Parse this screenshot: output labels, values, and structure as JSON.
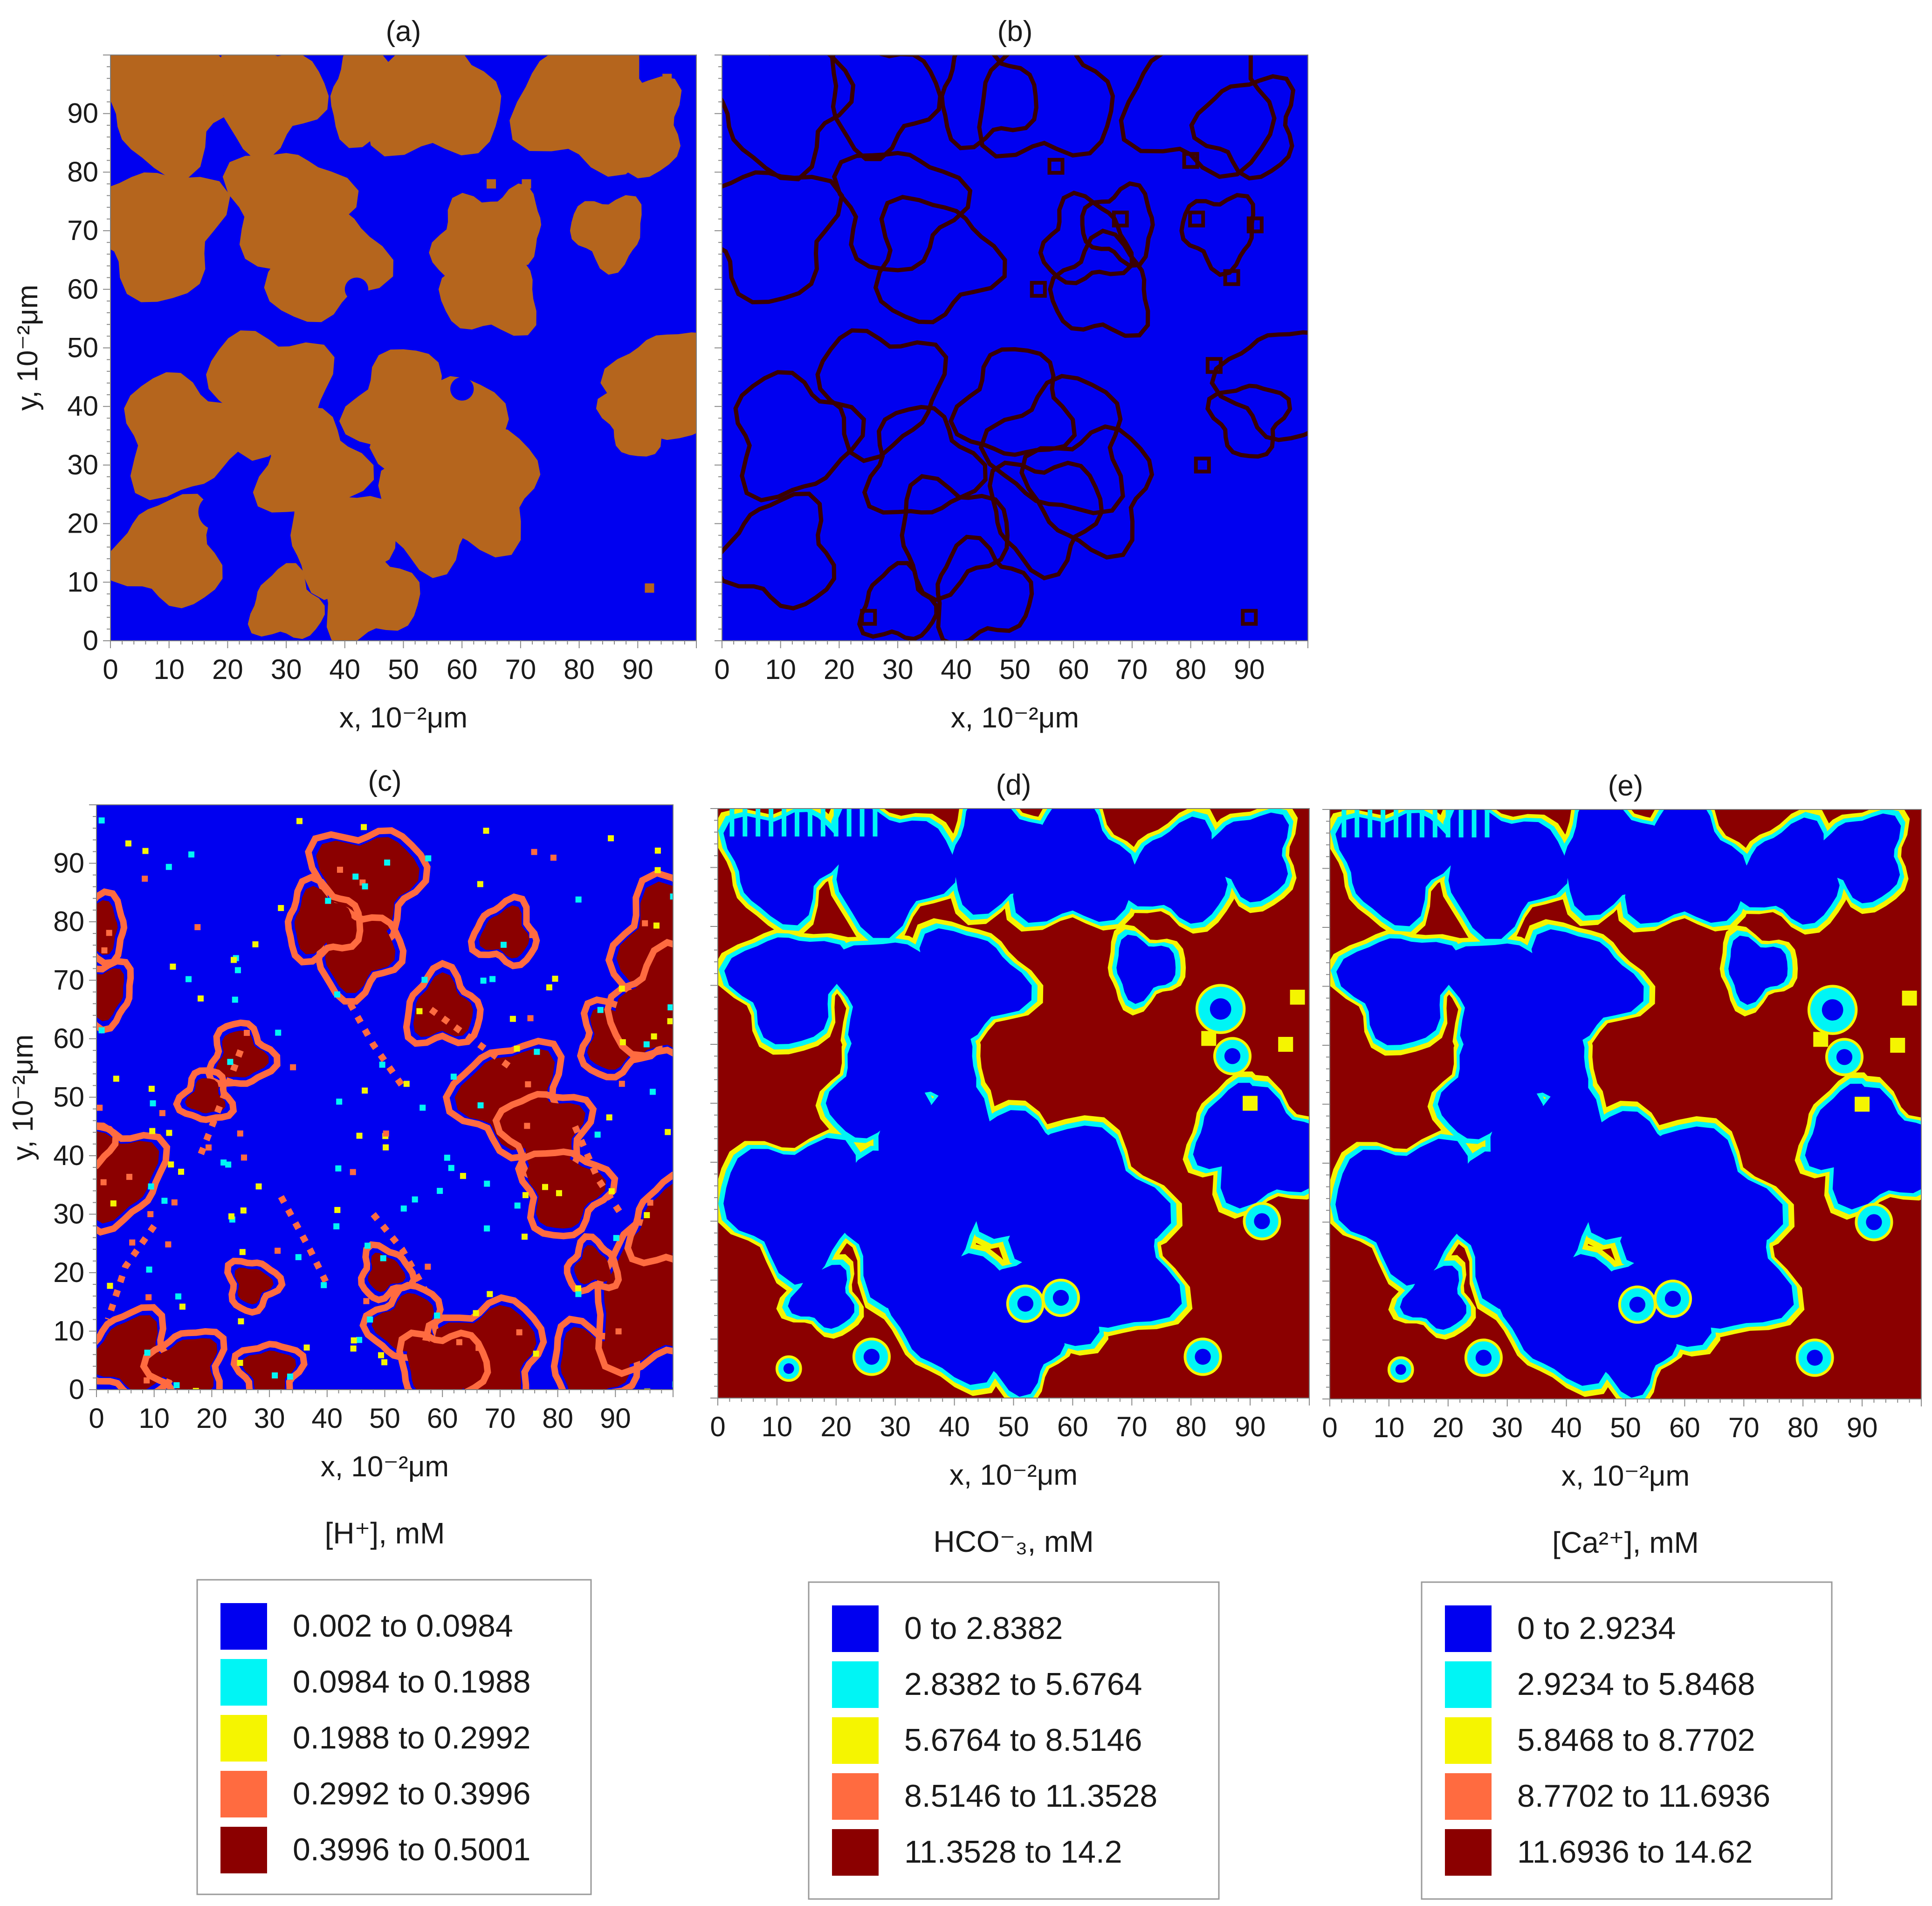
{
  "chart_data": [
    {
      "panel": "(a)",
      "type": "heatmap",
      "xlabel": "x, 10⁻²μm",
      "ylabel": "y, 10⁻²μm",
      "xticks": [
        "0",
        "10",
        "20",
        "30",
        "40",
        "50",
        "60",
        "70",
        "80",
        "90"
      ],
      "yticks": [
        "0",
        "10",
        "20",
        "30",
        "40",
        "50",
        "60",
        "70",
        "80",
        "90"
      ],
      "xlim": [
        0,
        100
      ],
      "ylim": [
        0,
        100
      ],
      "colors": [
        "#0000f0",
        "#b5651d"
      ],
      "blobs": [
        [
          10,
          92,
          11
        ],
        [
          27,
          93,
          9
        ],
        [
          45,
          93,
          8
        ],
        [
          55,
          93,
          11
        ],
        [
          82,
          92,
          12
        ],
        [
          90,
          88,
          8
        ],
        [
          8,
          70,
          11
        ],
        [
          30,
          74,
          10
        ],
        [
          36,
          65,
          10
        ],
        [
          62,
          68,
          7
        ],
        [
          65,
          60,
          8
        ],
        [
          68,
          71,
          6
        ],
        [
          85,
          70,
          6
        ],
        [
          27,
          43,
          10
        ],
        [
          12,
          35,
          10
        ],
        [
          34,
          30,
          9
        ],
        [
          50,
          40,
          9
        ],
        [
          58,
          33,
          11
        ],
        [
          63,
          26,
          10
        ],
        [
          55,
          22,
          9
        ],
        [
          39,
          18,
          9
        ],
        [
          44,
          8,
          8
        ],
        [
          30,
          6,
          6
        ],
        [
          10,
          15,
          9
        ],
        [
          95,
          44,
          9
        ],
        [
          90,
          38,
          6
        ]
      ],
      "holes": [
        [
          18,
          22,
          3
        ],
        [
          42,
          60,
          2
        ],
        [
          60,
          43,
          2
        ]
      ],
      "specks": [
        [
          25,
          4
        ],
        [
          49,
          21
        ],
        [
          51,
          17
        ],
        [
          92,
          9
        ],
        [
          95,
          96
        ],
        [
          65,
          78
        ],
        [
          71,
          78
        ]
      ]
    },
    {
      "panel": "(b)",
      "type": "heatmap",
      "xlabel": "x, 10⁻²μm",
      "ylabel": "",
      "xticks": [
        "0",
        "10",
        "20",
        "30",
        "40",
        "50",
        "60",
        "70",
        "80",
        "90"
      ],
      "xlim": [
        0,
        100
      ],
      "ylim": [
        0,
        100
      ],
      "colors": [
        "#0000f0",
        "#3a0000"
      ],
      "specks": [
        [
          25,
          4
        ],
        [
          80,
          82
        ],
        [
          68,
          72
        ],
        [
          57,
          81
        ],
        [
          81,
          72
        ],
        [
          87,
          62
        ],
        [
          84,
          47
        ],
        [
          82,
          30
        ],
        [
          54,
          60
        ],
        [
          90,
          4
        ],
        [
          91,
          71
        ]
      ]
    },
    {
      "panel": "(c)",
      "type": "heatmap",
      "xlabel": "x, 10⁻²μm",
      "quantity": "[H⁺], mM",
      "xticks": [
        "0",
        "10",
        "20",
        "30",
        "40",
        "50",
        "60",
        "70",
        "80",
        "90"
      ],
      "yticks": [
        "0",
        "10",
        "20",
        "30",
        "40",
        "50",
        "60",
        "70",
        "80",
        "90"
      ],
      "xlim": [
        0,
        100
      ],
      "ylim": [
        0,
        100
      ],
      "hot": [
        [
          47,
          87,
          8
        ],
        [
          45,
          75,
          6
        ],
        [
          39,
          80,
          5
        ],
        [
          60,
          65,
          5
        ],
        [
          71,
          78,
          4
        ],
        [
          72,
          50,
          8
        ],
        [
          78,
          44,
          6
        ],
        [
          81,
          34,
          6
        ],
        [
          90,
          60,
          5
        ],
        [
          100,
          76,
          9
        ],
        [
          99,
          65,
          8
        ],
        [
          0,
          79,
          4
        ],
        [
          1,
          68,
          4
        ],
        [
          3,
          37,
          7
        ],
        [
          -3,
          42,
          4
        ],
        [
          25,
          57,
          4
        ],
        [
          19,
          50,
          3
        ],
        [
          54,
          11,
          5
        ],
        [
          68,
          6,
          8
        ],
        [
          60,
          3,
          6
        ],
        [
          86,
          4,
          6
        ],
        [
          97,
          15,
          10
        ],
        [
          100,
          28,
          6
        ],
        [
          6,
          6,
          6
        ],
        [
          16,
          4,
          5
        ],
        [
          30,
          3,
          4
        ],
        [
          27,
          18,
          3
        ],
        [
          50,
          20,
          3
        ],
        [
          86,
          21,
          3
        ]
      ],
      "trails": [
        [
          [
            25,
            58
          ],
          [
            22,
            50
          ],
          [
            18,
            40
          ]
        ],
        [
          [
            44,
            66
          ],
          [
            48,
            59
          ],
          [
            53,
            52
          ]
        ],
        [
          [
            58,
            65
          ],
          [
            65,
            60
          ],
          [
            72,
            55
          ]
        ],
        [
          [
            83,
            45
          ],
          [
            87,
            36
          ],
          [
            91,
            30
          ]
        ],
        [
          [
            32,
            33
          ],
          [
            37,
            24
          ],
          [
            40,
            18
          ]
        ],
        [
          [
            48,
            30
          ],
          [
            53,
            24
          ],
          [
            57,
            17
          ]
        ],
        [
          [
            10,
            28
          ],
          [
            5,
            21
          ],
          [
            2,
            12
          ]
        ]
      ]
    },
    {
      "panel": "(d)",
      "type": "heatmap",
      "xlabel": "x, 10⁻²μm",
      "quantity": "HCO⁻₃, mM",
      "xticks": [
        "0",
        "10",
        "20",
        "30",
        "40",
        "50",
        "60",
        "70",
        "80",
        "90"
      ],
      "xlim": [
        0,
        100
      ],
      "ylim": [
        0,
        100
      ],
      "legend_hint": "same geometry as (e)"
    },
    {
      "panel": "(e)",
      "type": "heatmap",
      "xlabel": "x, 10⁻²μm",
      "quantity": "[Ca²⁺], mM",
      "xticks": [
        "0",
        "10",
        "20",
        "30",
        "40",
        "50",
        "60",
        "70",
        "80",
        "90"
      ],
      "xlim": [
        0,
        100
      ],
      "ylim": [
        0,
        100
      ],
      "blue_blobs": [
        [
          11,
          91,
          9
        ],
        [
          29,
          90,
          10
        ],
        [
          48,
          92,
          9
        ],
        [
          60,
          90,
          10
        ],
        [
          78,
          89,
          8
        ],
        [
          90,
          92,
          7
        ],
        [
          12,
          70,
          9
        ],
        [
          30,
          68,
          10
        ],
        [
          42,
          70,
          9
        ],
        [
          27,
          52,
          8
        ],
        [
          36,
          58,
          8
        ],
        [
          38,
          42,
          10
        ],
        [
          13,
          33,
          11
        ],
        [
          32,
          30,
          12
        ],
        [
          52,
          38,
          10
        ],
        [
          62,
          33,
          12
        ],
        [
          66,
          22,
          11
        ],
        [
          56,
          18,
          9
        ],
        [
          40,
          14,
          10
        ],
        [
          51,
          9,
          7
        ],
        [
          72,
          73,
          5
        ],
        [
          93,
          42,
          9
        ],
        [
          88,
          45,
          7
        ],
        [
          18,
          17,
          5
        ]
      ],
      "ring_spots": [
        [
          52,
          16,
          3
        ],
        [
          58,
          17,
          3
        ],
        [
          85,
          66,
          4
        ],
        [
          87,
          58,
          3
        ],
        [
          92,
          30,
          3
        ],
        [
          82,
          7,
          3
        ],
        [
          26,
          7,
          3
        ],
        [
          12,
          5,
          2
        ]
      ],
      "yellow_spots": [
        [
          83,
          61
        ],
        [
          98,
          68
        ],
        [
          96,
          60
        ],
        [
          90,
          50
        ]
      ]
    }
  ],
  "legends": [
    {
      "quantity": "[H⁺], mM",
      "items": [
        {
          "label": "0.002   to  0.0984",
          "color": "#0000f0"
        },
        {
          "label": "0.0984  to  0.1988",
          "color": "#00f5f5"
        },
        {
          "label": "0.1988  to  0.2992",
          "color": "#f5f500"
        },
        {
          "label": "0.2992  to  0.3996",
          "color": "#ff6b40"
        },
        {
          "label": "0.3996  to  0.5001",
          "color": "#8b0000"
        }
      ]
    },
    {
      "quantity": "HCO⁻₃, mM",
      "items": [
        {
          "label": "0  to  2.8382",
          "color": "#0000f0"
        },
        {
          "label": "2.8382  to  5.6764",
          "color": "#00f5f5"
        },
        {
          "label": "5.6764  to  8.5146",
          "color": "#f5f500"
        },
        {
          "label": "8.5146  to  11.3528",
          "color": "#ff6b40"
        },
        {
          "label": "11.3528  to  14.2",
          "color": "#8b0000"
        }
      ]
    },
    {
      "quantity": "[Ca²⁺], mM",
      "items": [
        {
          "label": "0  to  2.9234",
          "color": "#0000f0"
        },
        {
          "label": "2.9234  to  5.8468",
          "color": "#00f5f5"
        },
        {
          "label": "5.8468  to  8.7702",
          "color": "#f5f500"
        },
        {
          "label": "8.7702  to  11.6936",
          "color": "#ff6b40"
        },
        {
          "label": "11.6936  to  14.62",
          "color": "#8b0000"
        }
      ]
    }
  ]
}
